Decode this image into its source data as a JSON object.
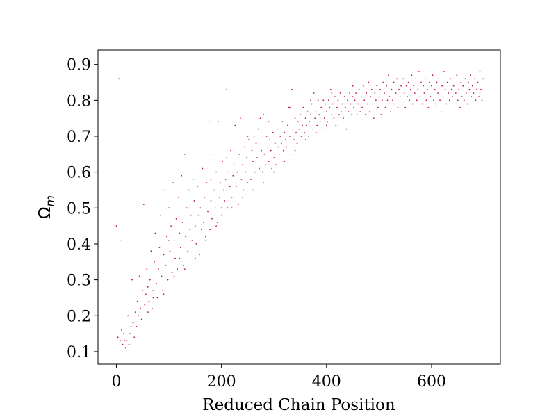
{
  "chart_data": {
    "type": "scatter",
    "xlabel": "Reduced Chain Position",
    "ylabel_main": "Ω",
    "ylabel_sub": "m",
    "xlim": [
      -35,
      731
    ],
    "ylim": [
      0.065,
      0.94
    ],
    "xticks": [
      0,
      200,
      400,
      600
    ],
    "yticks": [
      0.1,
      0.2,
      0.3,
      0.4,
      0.5,
      0.6,
      0.7,
      0.8,
      0.9
    ],
    "grid": false,
    "marker_color": "#c0143c",
    "points": [
      [
        0,
        0.45
      ],
      [
        3,
        0.14
      ],
      [
        5,
        0.86
      ],
      [
        7,
        0.41
      ],
      [
        8,
        0.13
      ],
      [
        10,
        0.16
      ],
      [
        12,
        0.12
      ],
      [
        14,
        0.15
      ],
      [
        16,
        0.13
      ],
      [
        18,
        0.11
      ],
      [
        20,
        0.13
      ],
      [
        22,
        0.2
      ],
      [
        24,
        0.12
      ],
      [
        26,
        0.15
      ],
      [
        28,
        0.17
      ],
      [
        30,
        0.3
      ],
      [
        32,
        0.18
      ],
      [
        34,
        0.14
      ],
      [
        36,
        0.21
      ],
      [
        38,
        0.17
      ],
      [
        40,
        0.24
      ],
      [
        42,
        0.2
      ],
      [
        44,
        0.31
      ],
      [
        46,
        0.22
      ],
      [
        48,
        0.19
      ],
      [
        50,
        0.27
      ],
      [
        52,
        0.51
      ],
      [
        54,
        0.23
      ],
      [
        56,
        0.26
      ],
      [
        58,
        0.33
      ],
      [
        60,
        0.28
      ],
      [
        62,
        0.24
      ],
      [
        64,
        0.3
      ],
      [
        66,
        0.38
      ],
      [
        68,
        0.22
      ],
      [
        70,
        0.27
      ],
      [
        72,
        0.35
      ],
      [
        74,
        0.43
      ],
      [
        76,
        0.29
      ],
      [
        78,
        0.25
      ],
      [
        80,
        0.33
      ],
      [
        82,
        0.39
      ],
      [
        84,
        0.48
      ],
      [
        86,
        0.31
      ],
      [
        88,
        0.27
      ],
      [
        90,
        0.37
      ],
      [
        92,
        0.55
      ],
      [
        94,
        0.34
      ],
      [
        96,
        0.42
      ],
      [
        98,
        0.3
      ],
      [
        100,
        0.5
      ],
      [
        102,
        0.38
      ],
      [
        104,
        0.45
      ],
      [
        106,
        0.32
      ],
      [
        108,
        0.57
      ],
      [
        110,
        0.41
      ],
      [
        112,
        0.36
      ],
      [
        114,
        0.47
      ],
      [
        116,
        0.33
      ],
      [
        118,
        0.53
      ],
      [
        120,
        0.43
      ],
      [
        122,
        0.39
      ],
      [
        124,
        0.59
      ],
      [
        126,
        0.46
      ],
      [
        128,
        0.34
      ],
      [
        130,
        0.65
      ],
      [
        132,
        0.42
      ],
      [
        134,
        0.5
      ],
      [
        136,
        0.38
      ],
      [
        138,
        0.55
      ],
      [
        140,
        0.44
      ],
      [
        142,
        0.48
      ],
      [
        144,
        0.41
      ],
      [
        146,
        0.58
      ],
      [
        148,
        0.52
      ],
      [
        150,
        0.45
      ],
      [
        152,
        0.4
      ],
      [
        154,
        0.56
      ],
      [
        156,
        0.48
      ],
      [
        158,
        0.37
      ],
      [
        160,
        0.5
      ],
      [
        162,
        0.44
      ],
      [
        164,
        0.61
      ],
      [
        166,
        0.46
      ],
      [
        168,
        0.53
      ],
      [
        170,
        0.42
      ],
      [
        172,
        0.57
      ],
      [
        174,
        0.49
      ],
      [
        176,
        0.74
      ],
      [
        178,
        0.44
      ],
      [
        180,
        0.52
      ],
      [
        182,
        0.47
      ],
      [
        184,
        0.65
      ],
      [
        186,
        0.55
      ],
      [
        188,
        0.5
      ],
      [
        190,
        0.6
      ],
      [
        192,
        0.46
      ],
      [
        194,
        0.74
      ],
      [
        196,
        0.53
      ],
      [
        198,
        0.57
      ],
      [
        200,
        0.5
      ],
      [
        202,
        0.63
      ],
      [
        204,
        0.55
      ],
      [
        206,
        0.52
      ],
      [
        208,
        0.58
      ],
      [
        210,
        0.83
      ],
      [
        212,
        0.5
      ],
      [
        214,
        0.6
      ],
      [
        216,
        0.56
      ],
      [
        218,
        0.66
      ],
      [
        220,
        0.53
      ],
      [
        222,
        0.59
      ],
      [
        224,
        0.62
      ],
      [
        226,
        0.73
      ],
      [
        228,
        0.56
      ],
      [
        230,
        0.6
      ],
      [
        232,
        0.51
      ],
      [
        234,
        0.65
      ],
      [
        236,
        0.75
      ],
      [
        238,
        0.58
      ],
      [
        240,
        0.62
      ],
      [
        242,
        0.55
      ],
      [
        244,
        0.67
      ],
      [
        246,
        0.6
      ],
      [
        248,
        0.64
      ],
      [
        250,
        0.57
      ],
      [
        252,
        0.69
      ],
      [
        254,
        0.62
      ],
      [
        256,
        0.58
      ],
      [
        258,
        0.66
      ],
      [
        260,
        0.63
      ],
      [
        262,
        0.7
      ],
      [
        264,
        0.6
      ],
      [
        266,
        0.68
      ],
      [
        268,
        0.64
      ],
      [
        270,
        0.72
      ],
      [
        272,
        0.61
      ],
      [
        274,
        0.75
      ],
      [
        276,
        0.66
      ],
      [
        278,
        0.6
      ],
      [
        280,
        0.76
      ],
      [
        282,
        0.65
      ],
      [
        284,
        0.62
      ],
      [
        286,
        0.7
      ],
      [
        288,
        0.67
      ],
      [
        290,
        0.63
      ],
      [
        292,
        0.69
      ],
      [
        294,
        0.66
      ],
      [
        296,
        0.61
      ],
      [
        298,
        0.71
      ],
      [
        300,
        0.64
      ],
      [
        302,
        0.68
      ],
      [
        304,
        0.62
      ],
      [
        306,
        0.72
      ],
      [
        308,
        0.67
      ],
      [
        310,
        0.65
      ],
      [
        312,
        0.7
      ],
      [
        314,
        0.68
      ],
      [
        316,
        0.74
      ],
      [
        318,
        0.66
      ],
      [
        320,
        0.71
      ],
      [
        322,
        0.69
      ],
      [
        324,
        0.67
      ],
      [
        326,
        0.73
      ],
      [
        328,
        0.78
      ],
      [
        330,
        0.7
      ],
      [
        332,
        0.65
      ],
      [
        334,
        0.83
      ],
      [
        336,
        0.72
      ],
      [
        338,
        0.69
      ],
      [
        340,
        0.75
      ],
      [
        342,
        0.71
      ],
      [
        344,
        0.68
      ],
      [
        346,
        0.74
      ],
      [
        348,
        0.72
      ],
      [
        350,
        0.76
      ],
      [
        352,
        0.7
      ],
      [
        354,
        0.73
      ],
      [
        356,
        0.78
      ],
      [
        358,
        0.71
      ],
      [
        360,
        0.75
      ],
      [
        362,
        0.73
      ],
      [
        364,
        0.77
      ],
      [
        366,
        0.7
      ],
      [
        368,
        0.74
      ],
      [
        370,
        0.76
      ],
      [
        372,
        0.79
      ],
      [
        374,
        0.72
      ],
      [
        376,
        0.82
      ],
      [
        378,
        0.75
      ],
      [
        380,
        0.77
      ],
      [
        382,
        0.73
      ],
      [
        384,
        0.8
      ],
      [
        386,
        0.76
      ],
      [
        388,
        0.74
      ],
      [
        390,
        0.78
      ],
      [
        392,
        0.72
      ],
      [
        394,
        0.8
      ],
      [
        396,
        0.75
      ],
      [
        398,
        0.79
      ],
      [
        400,
        0.77
      ],
      [
        402,
        0.74
      ],
      [
        404,
        0.8
      ],
      [
        406,
        0.78
      ],
      [
        408,
        0.83
      ],
      [
        410,
        0.76
      ],
      [
        412,
        0.79
      ],
      [
        414,
        0.75
      ],
      [
        416,
        0.81
      ],
      [
        418,
        0.73
      ],
      [
        420,
        0.78
      ],
      [
        422,
        0.8
      ],
      [
        424,
        0.76
      ],
      [
        426,
        0.82
      ],
      [
        428,
        0.77
      ],
      [
        430,
        0.79
      ],
      [
        432,
        0.75
      ],
      [
        434,
        0.81
      ],
      [
        436,
        0.78
      ],
      [
        438,
        0.72
      ],
      [
        440,
        0.8
      ],
      [
        442,
        0.77
      ],
      [
        444,
        0.82
      ],
      [
        446,
        0.79
      ],
      [
        448,
        0.76
      ],
      [
        450,
        0.84
      ],
      [
        452,
        0.78
      ],
      [
        454,
        0.8
      ],
      [
        456,
        0.82
      ],
      [
        458,
        0.76
      ],
      [
        460,
        0.79
      ],
      [
        462,
        0.83
      ],
      [
        464,
        0.77
      ],
      [
        466,
        0.81
      ],
      [
        468,
        0.78
      ],
      [
        470,
        0.84
      ],
      [
        472,
        0.8
      ],
      [
        474,
        0.76
      ],
      [
        476,
        0.82
      ],
      [
        478,
        0.79
      ],
      [
        480,
        0.85
      ],
      [
        482,
        0.77
      ],
      [
        484,
        0.81
      ],
      [
        486,
        0.83
      ],
      [
        488,
        0.79
      ],
      [
        490,
        0.75
      ],
      [
        492,
        0.82
      ],
      [
        494,
        0.8
      ],
      [
        496,
        0.84
      ],
      [
        498,
        0.78
      ],
      [
        500,
        0.81
      ],
      [
        502,
        0.83
      ],
      [
        504,
        0.76
      ],
      [
        506,
        0.8
      ],
      [
        508,
        0.85
      ],
      [
        510,
        0.82
      ],
      [
        512,
        0.78
      ],
      [
        514,
        0.84
      ],
      [
        516,
        0.8
      ],
      [
        518,
        0.87
      ],
      [
        520,
        0.81
      ],
      [
        522,
        0.77
      ],
      [
        524,
        0.83
      ],
      [
        526,
        0.8
      ],
      [
        528,
        0.85
      ],
      [
        530,
        0.79
      ],
      [
        532,
        0.82
      ],
      [
        534,
        0.86
      ],
      [
        536,
        0.78
      ],
      [
        538,
        0.83
      ],
      [
        540,
        0.81
      ],
      [
        542,
        0.84
      ],
      [
        544,
        0.79
      ],
      [
        546,
        0.86
      ],
      [
        548,
        0.82
      ],
      [
        550,
        0.78
      ],
      [
        552,
        0.84
      ],
      [
        554,
        0.81
      ],
      [
        556,
        0.85
      ],
      [
        558,
        0.8
      ],
      [
        560,
        0.83
      ],
      [
        562,
        0.87
      ],
      [
        564,
        0.79
      ],
      [
        566,
        0.84
      ],
      [
        568,
        0.82
      ],
      [
        570,
        0.86
      ],
      [
        572,
        0.8
      ],
      [
        574,
        0.83
      ],
      [
        576,
        0.88
      ],
      [
        578,
        0.81
      ],
      [
        580,
        0.85
      ],
      [
        582,
        0.79
      ],
      [
        584,
        0.84
      ],
      [
        586,
        0.82
      ],
      [
        588,
        0.86
      ],
      [
        590,
        0.8
      ],
      [
        592,
        0.83
      ],
      [
        594,
        0.78
      ],
      [
        596,
        0.85
      ],
      [
        598,
        0.81
      ],
      [
        600,
        0.84
      ],
      [
        602,
        0.87
      ],
      [
        604,
        0.8
      ],
      [
        606,
        0.83
      ],
      [
        608,
        0.79
      ],
      [
        610,
        0.85
      ],
      [
        612,
        0.82
      ],
      [
        614,
        0.86
      ],
      [
        616,
        0.8
      ],
      [
        618,
        0.77
      ],
      [
        620,
        0.84
      ],
      [
        622,
        0.81
      ],
      [
        624,
        0.88
      ],
      [
        626,
        0.83
      ],
      [
        628,
        0.79
      ],
      [
        630,
        0.85
      ],
      [
        632,
        0.82
      ],
      [
        634,
        0.8
      ],
      [
        636,
        0.86
      ],
      [
        638,
        0.83
      ],
      [
        640,
        0.81
      ],
      [
        642,
        0.84
      ],
      [
        644,
        0.79
      ],
      [
        646,
        0.82
      ],
      [
        648,
        0.87
      ],
      [
        650,
        0.8
      ],
      [
        652,
        0.83
      ],
      [
        654,
        0.78
      ],
      [
        656,
        0.85
      ],
      [
        658,
        0.81
      ],
      [
        660,
        0.84
      ],
      [
        662,
        0.8
      ],
      [
        664,
        0.86
      ],
      [
        666,
        0.82
      ],
      [
        668,
        0.79
      ],
      [
        670,
        0.85
      ],
      [
        672,
        0.83
      ],
      [
        674,
        0.87
      ],
      [
        676,
        0.81
      ],
      [
        678,
        0.84
      ],
      [
        680,
        0.82
      ],
      [
        682,
        0.86
      ],
      [
        684,
        0.8
      ],
      [
        686,
        0.83
      ],
      [
        688,
        0.85
      ],
      [
        690,
        0.81
      ],
      [
        692,
        0.88
      ],
      [
        694,
        0.83
      ],
      [
        696,
        0.8
      ],
      [
        698,
        0.86
      ],
      [
        60,
        0.21
      ],
      [
        70,
        0.25
      ],
      [
        90,
        0.26
      ],
      [
        110,
        0.31
      ],
      [
        120,
        0.36
      ],
      [
        130,
        0.33
      ],
      [
        150,
        0.36
      ],
      [
        170,
        0.41
      ],
      [
        190,
        0.45
      ],
      [
        200,
        0.48
      ],
      [
        220,
        0.5
      ],
      [
        240,
        0.53
      ],
      [
        260,
        0.55
      ],
      [
        280,
        0.57
      ],
      [
        300,
        0.6
      ],
      [
        320,
        0.63
      ],
      [
        340,
        0.66
      ],
      [
        360,
        0.69
      ],
      [
        380,
        0.71
      ],
      [
        400,
        0.73
      ],
      [
        100,
        0.41
      ],
      [
        140,
        0.5
      ],
      [
        180,
        0.58
      ],
      [
        210,
        0.64
      ],
      [
        250,
        0.7
      ],
      [
        290,
        0.74
      ],
      [
        330,
        0.78
      ],
      [
        370,
        0.8
      ],
      [
        410,
        0.82
      ],
      [
        450,
        0.81
      ]
    ]
  }
}
